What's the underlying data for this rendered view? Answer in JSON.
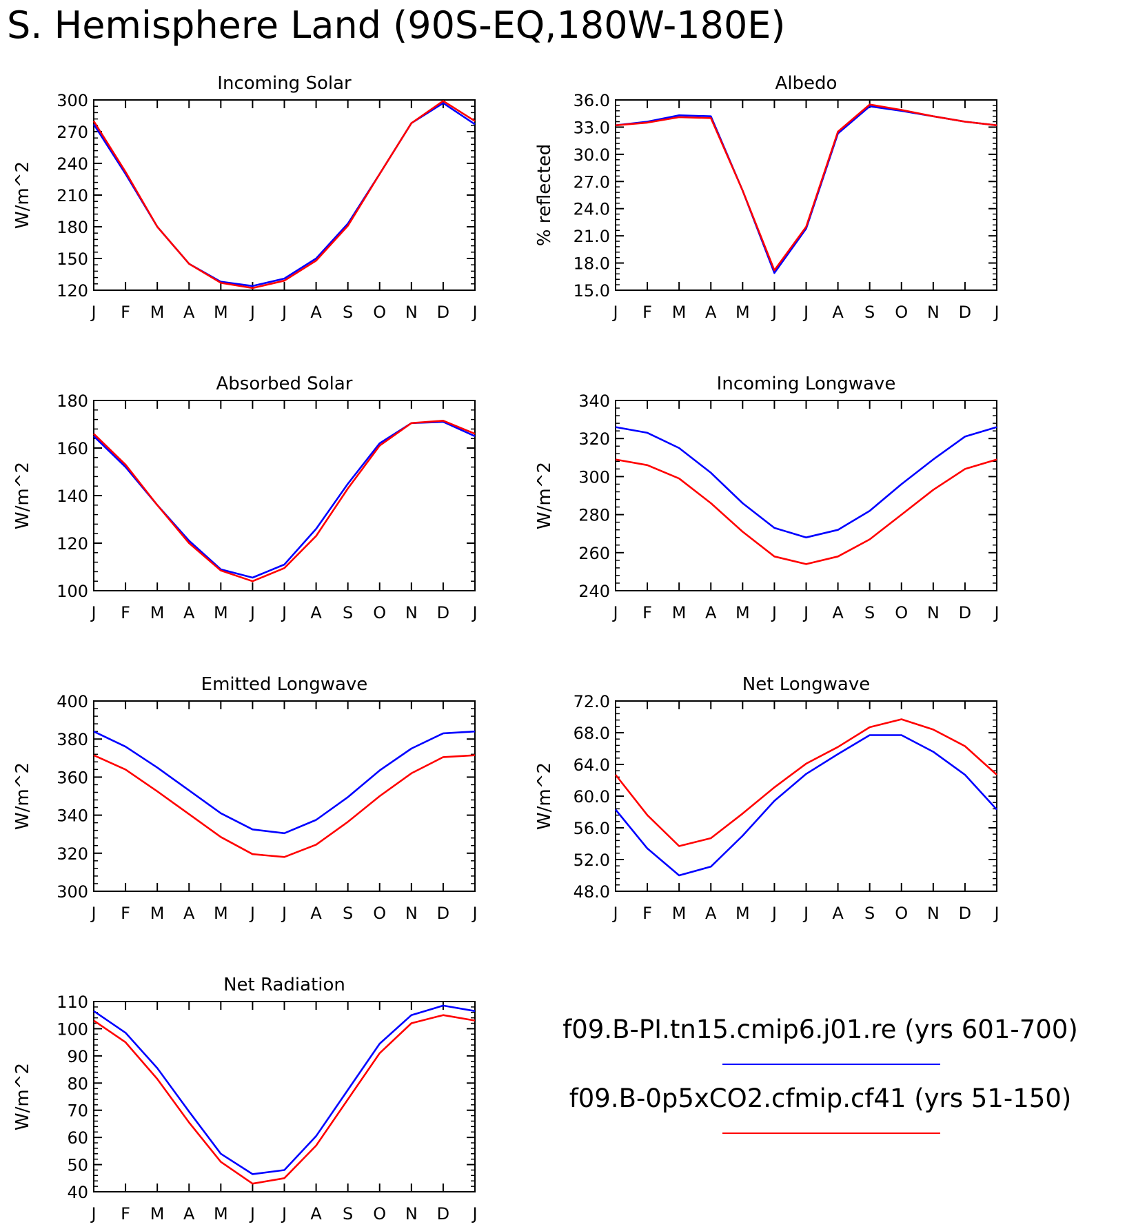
{
  "title": "S. Hemisphere Land (90S-EQ,180W-180E)",
  "legend": [
    {
      "name": "f09.B-PI.tn15.cmip6.j01.re (yrs 601-700)",
      "color": "#0000ff"
    },
    {
      "name": "f09.B-0p5xCO2.cfmip.cf41 (yrs 51-150)",
      "color": "#ff0000"
    }
  ],
  "chart_data": [
    {
      "type": "line",
      "title": "Incoming Solar",
      "ylabel": "W/m^2",
      "categories": [
        "J",
        "F",
        "M",
        "A",
        "M",
        "J",
        "J",
        "A",
        "S",
        "O",
        "N",
        "D",
        "J"
      ],
      "ylim": [
        120,
        300
      ],
      "yticks": [
        120,
        150,
        180,
        210,
        240,
        270,
        300
      ],
      "ytick_labels": [
        "120",
        "150",
        "180",
        "210",
        "240",
        "270",
        "300"
      ],
      "series": [
        {
          "color": "#0000ff",
          "values": [
            277,
            230,
            180,
            145,
            128,
            124,
            131,
            150,
            183,
            230,
            278,
            297,
            277
          ]
        },
        {
          "color": "#ff0000",
          "values": [
            280,
            232,
            180,
            145,
            127,
            122,
            129,
            148,
            181,
            230,
            278,
            299,
            280
          ]
        }
      ]
    },
    {
      "type": "line",
      "title": "Albedo",
      "ylabel": "% reflected",
      "categories": [
        "J",
        "F",
        "M",
        "A",
        "M",
        "J",
        "J",
        "A",
        "S",
        "O",
        "N",
        "D",
        "J"
      ],
      "ylim": [
        15,
        36
      ],
      "yticks": [
        15,
        18,
        21,
        24,
        27,
        30,
        33,
        36
      ],
      "ytick_labels": [
        "15.0",
        "18.0",
        "21.0",
        "24.0",
        "27.0",
        "30.0",
        "33.0",
        "36.0"
      ],
      "series": [
        {
          "color": "#0000ff",
          "values": [
            33.2,
            33.6,
            34.3,
            34.2,
            26.0,
            16.9,
            21.8,
            32.3,
            35.3,
            34.8,
            34.2,
            33.6,
            33.2
          ]
        },
        {
          "color": "#ff0000",
          "values": [
            33.2,
            33.5,
            34.1,
            34.0,
            26.0,
            17.2,
            22.0,
            32.5,
            35.5,
            34.9,
            34.2,
            33.6,
            33.2
          ]
        }
      ]
    },
    {
      "type": "line",
      "title": "Absorbed Solar",
      "ylabel": "W/m^2",
      "categories": [
        "J",
        "F",
        "M",
        "A",
        "M",
        "J",
        "J",
        "A",
        "S",
        "O",
        "N",
        "D",
        "J"
      ],
      "ylim": [
        100,
        180
      ],
      "yticks": [
        100,
        120,
        140,
        160,
        180
      ],
      "ytick_labels": [
        "100",
        "120",
        "140",
        "160",
        "180"
      ],
      "series": [
        {
          "color": "#0000ff",
          "values": [
            165,
            152,
            136,
            121,
            109,
            105.5,
            111,
            126,
            145,
            162,
            170.5,
            171,
            165
          ]
        },
        {
          "color": "#ff0000",
          "values": [
            166,
            153,
            136,
            120,
            108.5,
            104,
            109.5,
            123,
            143,
            161,
            170.5,
            171.5,
            166
          ]
        }
      ]
    },
    {
      "type": "line",
      "title": "Incoming Longwave",
      "ylabel": "W/m^2",
      "categories": [
        "J",
        "F",
        "M",
        "A",
        "M",
        "J",
        "J",
        "A",
        "S",
        "O",
        "N",
        "D",
        "J"
      ],
      "ylim": [
        240,
        340
      ],
      "yticks": [
        240,
        260,
        280,
        300,
        320,
        340
      ],
      "ytick_labels": [
        "240",
        "260",
        "280",
        "300",
        "320",
        "340"
      ],
      "series": [
        {
          "color": "#0000ff",
          "values": [
            326,
            323,
            315,
            302,
            286,
            273,
            268,
            272,
            282,
            296,
            309,
            321,
            326
          ]
        },
        {
          "color": "#ff0000",
          "values": [
            309,
            306,
            299,
            286,
            271,
            258,
            254,
            258,
            267,
            280,
            293,
            304,
            309
          ]
        }
      ]
    },
    {
      "type": "line",
      "title": "Emitted Longwave",
      "ylabel": "W/m^2",
      "categories": [
        "J",
        "F",
        "M",
        "A",
        "M",
        "J",
        "J",
        "A",
        "S",
        "O",
        "N",
        "D",
        "J"
      ],
      "ylim": [
        300,
        400
      ],
      "yticks": [
        300,
        320,
        340,
        360,
        380,
        400
      ],
      "ytick_labels": [
        "300",
        "320",
        "340",
        "360",
        "380",
        "400"
      ],
      "series": [
        {
          "color": "#0000ff",
          "values": [
            384,
            376,
            365,
            353,
            341,
            332.5,
            330.5,
            337.5,
            349.5,
            363.5,
            375,
            383,
            384
          ]
        },
        {
          "color": "#ff0000",
          "values": [
            371.5,
            364,
            352.5,
            340.5,
            328.5,
            319.5,
            318,
            324.5,
            336.5,
            350,
            362,
            370.5,
            371.5
          ]
        }
      ]
    },
    {
      "type": "line",
      "title": "Net Longwave",
      "ylabel": "W/m^2",
      "categories": [
        "J",
        "F",
        "M",
        "A",
        "M",
        "J",
        "J",
        "A",
        "S",
        "O",
        "N",
        "D",
        "J"
      ],
      "ylim": [
        48,
        72
      ],
      "yticks": [
        48,
        52,
        56,
        60,
        64,
        68,
        72
      ],
      "ytick_labels": [
        "48.0",
        "52.0",
        "56.0",
        "60.0",
        "64.0",
        "68.0",
        "72.0"
      ],
      "series": [
        {
          "color": "#0000ff",
          "values": [
            58.3,
            53.4,
            50.0,
            51.1,
            55.0,
            59.4,
            62.8,
            65.3,
            67.7,
            67.7,
            65.6,
            62.7,
            58.3
          ]
        },
        {
          "color": "#ff0000",
          "values": [
            62.7,
            57.6,
            53.7,
            54.7,
            57.8,
            61.1,
            64.1,
            66.2,
            68.7,
            69.7,
            68.4,
            66.3,
            62.7
          ]
        }
      ]
    },
    {
      "type": "line",
      "title": "Net Radiation",
      "ylabel": "W/m^2",
      "categories": [
        "J",
        "F",
        "M",
        "A",
        "M",
        "J",
        "J",
        "A",
        "S",
        "O",
        "N",
        "D",
        "J"
      ],
      "ylim": [
        40,
        110
      ],
      "yticks": [
        40,
        50,
        60,
        70,
        80,
        90,
        100,
        110
      ],
      "ytick_labels": [
        "40",
        "50",
        "60",
        "70",
        "80",
        "90",
        "100",
        "110"
      ],
      "series": [
        {
          "color": "#0000ff",
          "values": [
            106.5,
            98.5,
            85.5,
            69.5,
            54,
            46.5,
            48,
            60.5,
            77.5,
            94.5,
            105,
            108.5,
            106.5
          ]
        },
        {
          "color": "#ff0000",
          "values": [
            103,
            95,
            81.5,
            65.5,
            51,
            43,
            45,
            57,
            74,
            91,
            102,
            105,
            103
          ]
        }
      ]
    }
  ]
}
